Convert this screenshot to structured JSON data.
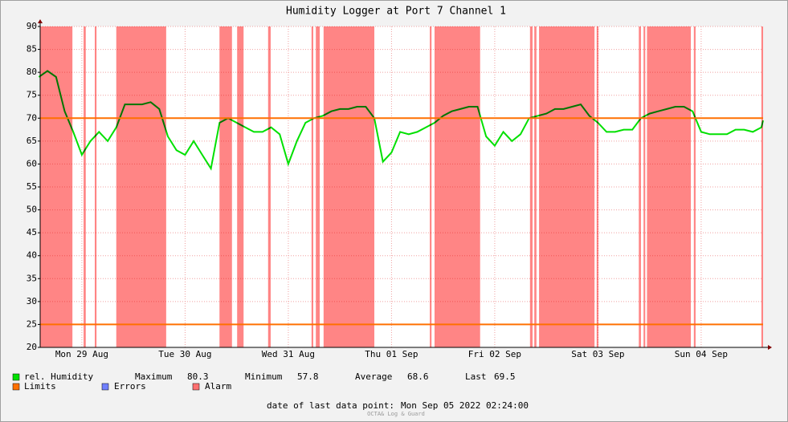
{
  "chart_data": {
    "type": "line",
    "title": "Humidity Logger at Port 7 Channel 1",
    "x": [
      2,
      4,
      6,
      8,
      10,
      12,
      14,
      16,
      18,
      20,
      22,
      24,
      26,
      28,
      30,
      32,
      34,
      36,
      38,
      40,
      42,
      44,
      46,
      48,
      50,
      52,
      54,
      56,
      58,
      60,
      62,
      64,
      66,
      68,
      70,
      72,
      74,
      76,
      78,
      80,
      82,
      84,
      86,
      88,
      90,
      92,
      94,
      96,
      98,
      100,
      102,
      104,
      106,
      108,
      110,
      112,
      114,
      116,
      118,
      120,
      122,
      124,
      126,
      128,
      130,
      132,
      134,
      136,
      138,
      140,
      142,
      144,
      146,
      148,
      150,
      152,
      154,
      156,
      158,
      160,
      162,
      164,
      166,
      168,
      170,
      170.4
    ],
    "series": [
      {
        "name": "rel. Humidity",
        "color": "#00e000",
        "values": [
          79,
          80.3,
          79,
          71.5,
          67,
          62,
          65,
          67,
          65,
          68,
          73,
          73,
          73,
          73.5,
          72,
          66,
          63,
          62,
          65,
          62,
          59,
          69,
          70,
          69,
          68,
          67,
          67,
          68,
          66.5,
          60,
          65,
          69,
          70,
          70.5,
          71.5,
          72,
          72,
          72.5,
          72.5,
          70,
          60.5,
          62.5,
          67,
          66.5,
          67,
          68,
          69,
          70.5,
          71.5,
          72,
          72.5,
          72.5,
          66,
          64,
          67,
          65,
          66.5,
          70,
          70.5,
          71,
          72,
          72,
          72.5,
          73,
          70.5,
          69,
          67,
          67,
          67.5,
          67.5,
          70,
          71,
          71.5,
          72,
          72.5,
          72.5,
          71.5,
          67,
          66.5,
          66.5,
          66.5,
          67.5,
          67.5,
          67,
          68,
          69.5
        ]
      }
    ],
    "limits": {
      "name": "Limits",
      "color": "#ff7000",
      "values": [
        25,
        70
      ]
    },
    "errors": {
      "name": "Errors",
      "color": "#7080ff"
    },
    "alarm": {
      "name": "Alarm",
      "color": "#ff7070",
      "periods": [
        [
          2.3,
          9.8
        ],
        [
          12.4,
          12.9
        ],
        [
          15.0,
          15.4
        ],
        [
          20.0,
          31.6
        ],
        [
          44.0,
          46.9
        ],
        [
          48.1,
          49.6
        ],
        [
          55.3,
          55.9
        ],
        [
          65.4,
          65.8
        ],
        [
          66.4,
          67.3
        ],
        [
          68.2,
          80.0
        ],
        [
          92.9,
          93.3
        ],
        [
          94.0,
          104.6
        ],
        [
          116.2,
          116.8
        ],
        [
          117.2,
          117.7
        ],
        [
          118.3,
          131.2
        ],
        [
          131.7,
          132.1
        ],
        [
          141.5,
          142.0
        ],
        [
          142.6,
          143.0
        ],
        [
          143.4,
          153.6
        ],
        [
          154.3,
          154.7
        ],
        [
          170.0,
          170.4
        ]
      ]
    },
    "stats": [
      {
        "label": "Maximum",
        "value": 80.3
      },
      {
        "label": "Minimum",
        "value": 57.8
      },
      {
        "label": "Average",
        "value": 68.6
      },
      {
        "label": "Last",
        "value": 69.5
      }
    ],
    "xlim": [
      2.3,
      170.4
    ],
    "xticks": [
      {
        "value": 12,
        "label": "Mon 29 Aug"
      },
      {
        "value": 36,
        "label": "Tue 30 Aug"
      },
      {
        "value": 60,
        "label": "Wed 31 Aug"
      },
      {
        "value": 84,
        "label": "Thu 01 Sep"
      },
      {
        "value": 108,
        "label": "Fri 02 Sep"
      },
      {
        "value": 132,
        "label": "Sat 03 Sep"
      },
      {
        "value": 156,
        "label": "Sun 04 Sep"
      }
    ],
    "ylim": [
      20,
      90
    ],
    "yticks": [
      20,
      25,
      30,
      35,
      40,
      45,
      50,
      55,
      60,
      65,
      70,
      75,
      80,
      85,
      90
    ],
    "grid": true,
    "footer_label": "date of last data point:",
    "footer_date": "Mon Sep 05 2022 02:24:00",
    "watermark": "OCTA& Log & Guard"
  }
}
